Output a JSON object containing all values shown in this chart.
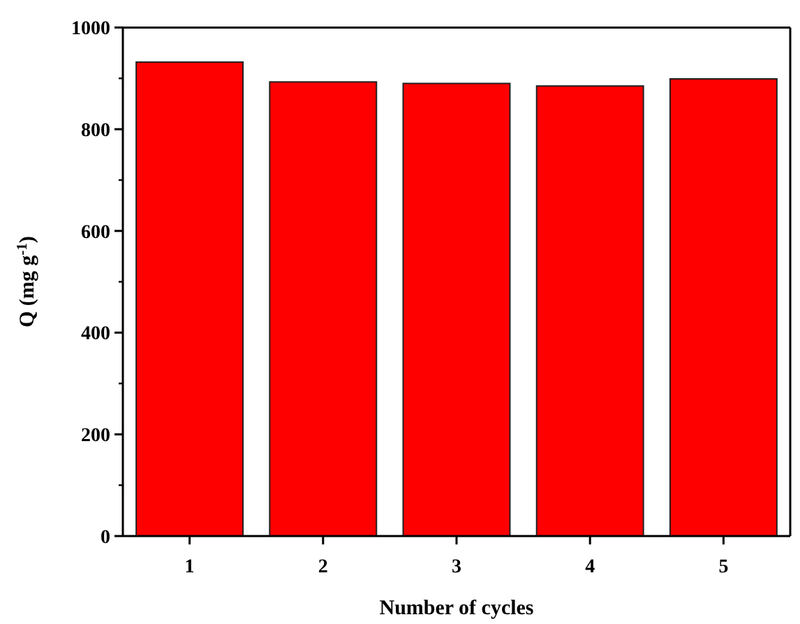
{
  "chart_data": {
    "type": "bar",
    "xlabel": "Number of cycles",
    "ylabel": "Q (mg g$^{-1}$)",
    "categories": [
      "1",
      "2",
      "3",
      "4",
      "5"
    ],
    "values": [
      932,
      893,
      890,
      885,
      899
    ],
    "color": "#ff0000",
    "ylim": [
      0,
      1000
    ],
    "yticks": [
      0,
      200,
      400,
      600,
      800,
      1000
    ]
  }
}
